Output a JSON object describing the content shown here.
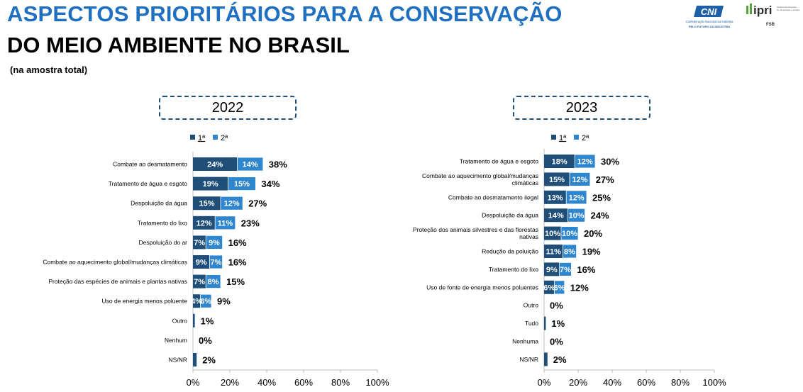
{
  "header": {
    "title_line1": "ASPECTOS PRIORITÁRIOS PARA A CONSERVAÇÃO",
    "title_line2": "DO MEIO AMBIENTE NO BRASIL",
    "subtitle": "(na amostra total)"
  },
  "logos": {
    "cni_text": "CNI",
    "cni_caption": "Confederação Nacional da Indústria",
    "cni_tagline": "PELO FUTURO DA INDÚSTRIA",
    "ipri_text": "ipri",
    "ipri_caption": "Instituto de Pesquisa em Reputação e Imagem",
    "fsb_text": "FSB"
  },
  "colors": {
    "first": "#1f4e79",
    "second": "#2e86cf",
    "title_blue": "#1f70c1"
  },
  "chart_data": [
    {
      "type": "bar",
      "stacked": true,
      "orientation": "horizontal",
      "title": "2022",
      "legend": [
        "1ª",
        "2ª"
      ],
      "categories": [
        "Combate ao desmatamento",
        "Tratamento de água e esgoto",
        "Despoluição da água",
        "Tratamento do lixo",
        "Despoluição do ar",
        "Combate ao aquecimento global/mudanças climáticas",
        "Proteção das espécies de animais e plantas nativas",
        "Uso de energia menos poluente",
        "Outro",
        "Nenhum",
        "NS/NR"
      ],
      "series": [
        {
          "name": "1ª",
          "values": [
            24,
            19,
            15,
            12,
            7,
            9,
            7,
            4,
            1,
            0,
            2
          ],
          "labels": [
            "24%",
            "19%",
            "15%",
            "12%",
            "7%",
            "9%",
            "7%",
            "4%",
            "",
            "",
            ""
          ]
        },
        {
          "name": "2ª",
          "values": [
            14,
            15,
            12,
            11,
            9,
            7,
            8,
            6,
            0,
            0,
            0
          ],
          "labels": [
            "14%",
            "15%",
            "12%",
            "11%",
            "9%",
            "7%",
            "8%",
            "6%",
            "",
            "",
            ""
          ]
        }
      ],
      "totals": [
        "38%",
        "34%",
        "27%",
        "23%",
        "16%",
        "16%",
        "15%",
        "9%",
        "1%",
        "0%",
        "2%"
      ],
      "xlim": [
        0,
        100
      ],
      "xticks": [
        "0%",
        "20%",
        "40%",
        "60%",
        "80%",
        "100%"
      ]
    },
    {
      "type": "bar",
      "stacked": true,
      "orientation": "horizontal",
      "title": "2023",
      "legend": [
        "1ª",
        "2ª"
      ],
      "categories": [
        "Tratamento de água e esgoto",
        [
          "Combate ao aquecimento global/mudanças",
          "climáticas"
        ],
        "Combate ao desmatamento ilegal",
        "Despoluição da água",
        [
          "Proteção dos animais silvestres e das florestas",
          "nativas"
        ],
        "Redução da poluição",
        "Tratamento do lixo",
        "Uso de fonte de energia menos poluentes",
        "Outro",
        "Tudo",
        "Nenhuma",
        "NS/NR"
      ],
      "series": [
        {
          "name": "1ª",
          "values": [
            18,
            15,
            13,
            14,
            10,
            11,
            9,
            6,
            0,
            1,
            0,
            2
          ],
          "labels": [
            "18%",
            "15%",
            "13%",
            "14%",
            "10%",
            "11%",
            "9%",
            "6%",
            "",
            "",
            "",
            ""
          ]
        },
        {
          "name": "2ª",
          "values": [
            12,
            12,
            12,
            10,
            10,
            8,
            7,
            6,
            0,
            0,
            0,
            0
          ],
          "labels": [
            "12%",
            "12%",
            "12%",
            "10%",
            "10%",
            "8%",
            "7%",
            "6%",
            "",
            "",
            "",
            ""
          ]
        }
      ],
      "totals": [
        "30%",
        "27%",
        "25%",
        "24%",
        "20%",
        "19%",
        "16%",
        "12%",
        "0%",
        "1%",
        "0%",
        "2%"
      ],
      "xlim": [
        0,
        100
      ],
      "xticks": [
        "0%",
        "20%",
        "40%",
        "60%",
        "80%",
        "100%"
      ]
    }
  ]
}
